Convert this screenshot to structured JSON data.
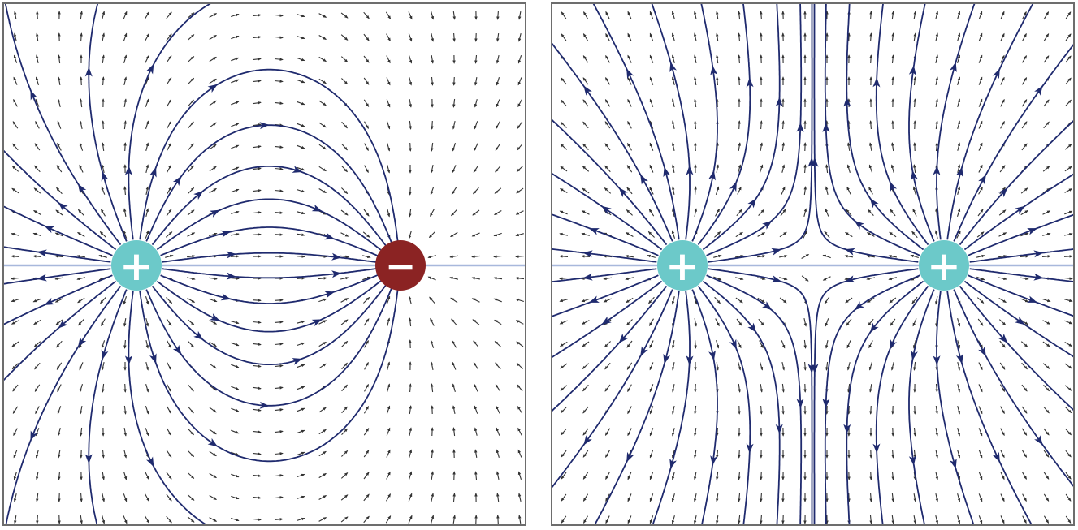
{
  "figure": {
    "panels": [
      {
        "id": "dipole",
        "charges": [
          {
            "sign": "+",
            "symbol": "+",
            "color": "#6cc9c9"
          },
          {
            "sign": "-",
            "symbol": "−",
            "color": "#8b2323"
          }
        ]
      },
      {
        "id": "like-charges",
        "charges": [
          {
            "sign": "+",
            "symbol": "+",
            "color": "#6cc9c9"
          },
          {
            "sign": "+",
            "symbol": "+",
            "color": "#6cc9c9"
          }
        ]
      }
    ],
    "colors": {
      "field_line": "#1f2a6e",
      "vector_arrow": "#333333",
      "axis_line": "#a8b8dc",
      "border": "#6d6d6d"
    }
  }
}
